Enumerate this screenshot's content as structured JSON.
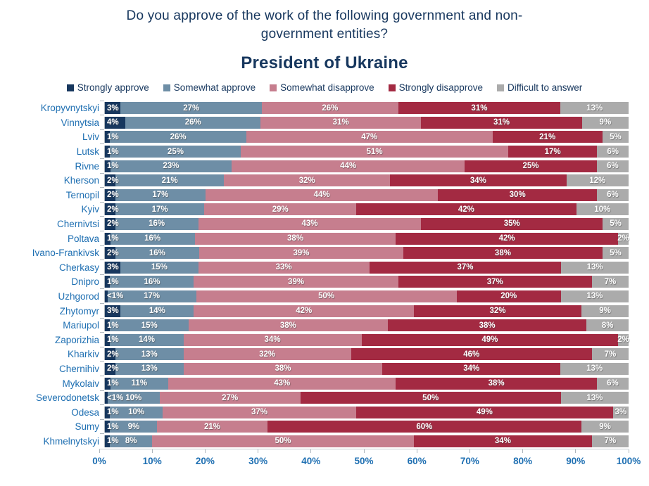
{
  "title_line1": "Do you approve of the work of the following government and non-",
  "title_line2": "government entities?",
  "subtitle": "President of Ukraine",
  "colors": {
    "title_text": "#17375E",
    "category_label_text": "#1E6FB2",
    "bar_value_text": "#FFFFFF",
    "axis_line": "#C6CCD1"
  },
  "legend": [
    {
      "label": "Strongly approve",
      "color": "#17375E"
    },
    {
      "label": "Somewhat approve",
      "color": "#6E8EA6"
    },
    {
      "label": "Somewhat disapprove",
      "color": "#C67E8E"
    },
    {
      "label": "Strongly disapprove",
      "color": "#A32A42"
    },
    {
      "label": "Difficult to answer",
      "color": "#ABABAB"
    }
  ],
  "chart_data": {
    "type": "bar",
    "orientation": "horizontal",
    "stacked": true,
    "unit": "%",
    "title": "President of Ukraine",
    "xlabel": "",
    "ylabel": "",
    "xlim": [
      0,
      100
    ],
    "grid": false,
    "legend_position": "top",
    "series": [
      "Strongly approve",
      "Somewhat approve",
      "Somewhat disapprove",
      "Strongly disapprove",
      "Difficult to answer"
    ],
    "series_keys": [
      "strongly-approve",
      "somewhat-approve",
      "somewhat-disapprove",
      "strongly-disapprove",
      "difficult-to-answer"
    ],
    "x_ticks": [
      "0%",
      "10%",
      "20%",
      "30%",
      "40%",
      "50%",
      "60%",
      "70%",
      "80%",
      "90%",
      "100%"
    ],
    "rows": [
      {
        "city": "Kropyvnytskyi",
        "values": [
          3,
          27,
          26,
          31,
          13
        ],
        "labels": [
          "3%",
          "27%",
          "26%",
          "31%",
          "13%"
        ]
      },
      {
        "city": "Vinnytsia",
        "values": [
          4,
          26,
          31,
          31,
          9
        ],
        "labels": [
          "4%",
          "26%",
          "31%",
          "31%",
          "9%"
        ]
      },
      {
        "city": "Lviv",
        "values": [
          1,
          26,
          47,
          21,
          5
        ],
        "labels": [
          "1%",
          "26%",
          "47%",
          "21%",
          "5%"
        ]
      },
      {
        "city": "Lutsk",
        "values": [
          1,
          25,
          51,
          17,
          6
        ],
        "labels": [
          "1%",
          "25%",
          "51%",
          "17%",
          "6%"
        ]
      },
      {
        "city": "Rivne",
        "values": [
          1,
          23,
          44,
          25,
          6
        ],
        "labels": [
          "1%",
          "23%",
          "44%",
          "25%",
          "6%"
        ]
      },
      {
        "city": "Kherson",
        "values": [
          2,
          21,
          32,
          34,
          12
        ],
        "labels": [
          "2%",
          "21%",
          "32%",
          "34%",
          "12%"
        ]
      },
      {
        "city": "Ternopil",
        "values": [
          2,
          17,
          44,
          30,
          6
        ],
        "labels": [
          "2%",
          "17%",
          "44%",
          "30%",
          "6%"
        ]
      },
      {
        "city": "Kyiv",
        "values": [
          2,
          17,
          29,
          42,
          10
        ],
        "labels": [
          "2%",
          "17%",
          "29%",
          "42%",
          "10%"
        ]
      },
      {
        "city": "Chernivtsi",
        "values": [
          2,
          16,
          43,
          35,
          5
        ],
        "labels": [
          "2%",
          "16%",
          "43%",
          "35%",
          "5%"
        ]
      },
      {
        "city": "Poltava",
        "values": [
          1,
          16,
          38,
          42,
          2
        ],
        "labels": [
          "1%",
          "16%",
          "38%",
          "42%",
          "2%"
        ]
      },
      {
        "city": "Ivano-Frankivsk",
        "values": [
          2,
          16,
          39,
          38,
          5
        ],
        "labels": [
          "2%",
          "16%",
          "39%",
          "38%",
          "5%"
        ]
      },
      {
        "city": "Cherkasy",
        "values": [
          3,
          15,
          33,
          37,
          13
        ],
        "labels": [
          "3%",
          "15%",
          "33%",
          "37%",
          "13%"
        ]
      },
      {
        "city": "Dnipro",
        "values": [
          1,
          16,
          39,
          37,
          7
        ],
        "labels": [
          "1%",
          "16%",
          "39%",
          "37%",
          "7%"
        ]
      },
      {
        "city": "Uzhgorod",
        "values": [
          0.5,
          17,
          50,
          20,
          13
        ],
        "labels": [
          "<1%",
          "17%",
          "50%",
          "20%",
          "13%"
        ]
      },
      {
        "city": "Zhytomyr",
        "values": [
          3,
          14,
          42,
          32,
          9
        ],
        "labels": [
          "3%",
          "14%",
          "42%",
          "32%",
          "9%"
        ]
      },
      {
        "city": "Mariupol",
        "values": [
          1,
          15,
          38,
          38,
          8
        ],
        "labels": [
          "1%",
          "15%",
          "38%",
          "38%",
          "8%"
        ]
      },
      {
        "city": "Zaporizhia",
        "values": [
          1,
          14,
          34,
          49,
          2
        ],
        "labels": [
          "1%",
          "14%",
          "34%",
          "49%",
          "2%"
        ]
      },
      {
        "city": "Kharkiv",
        "values": [
          2,
          13,
          32,
          46,
          7
        ],
        "labels": [
          "2%",
          "13%",
          "32%",
          "46%",
          "7%"
        ]
      },
      {
        "city": "Chernihiv",
        "values": [
          2,
          13,
          38,
          34,
          13
        ],
        "labels": [
          "2%",
          "13%",
          "38%",
          "34%",
          "13%"
        ]
      },
      {
        "city": "Mykolaiv",
        "values": [
          1,
          11,
          43,
          38,
          6
        ],
        "labels": [
          "1%",
          "11%",
          "43%",
          "38%",
          "6%"
        ]
      },
      {
        "city": "Severodonetsk",
        "values": [
          0.5,
          10,
          27,
          50,
          13
        ],
        "labels": [
          "<1%",
          "10%",
          "27%",
          "50%",
          "13%"
        ]
      },
      {
        "city": "Odesa",
        "values": [
          1,
          10,
          37,
          49,
          3
        ],
        "labels": [
          "1%",
          "10%",
          "37%",
          "49%",
          "3%"
        ]
      },
      {
        "city": "Sumy",
        "values": [
          1,
          9,
          21,
          60,
          9
        ],
        "labels": [
          "1%",
          "9%",
          "21%",
          "60%",
          "9%"
        ]
      },
      {
        "city": "Khmelnytskyi",
        "values": [
          1,
          8,
          50,
          34,
          7
        ],
        "labels": [
          "1%",
          "8%",
          "50%",
          "34%",
          "7%"
        ]
      }
    ]
  }
}
